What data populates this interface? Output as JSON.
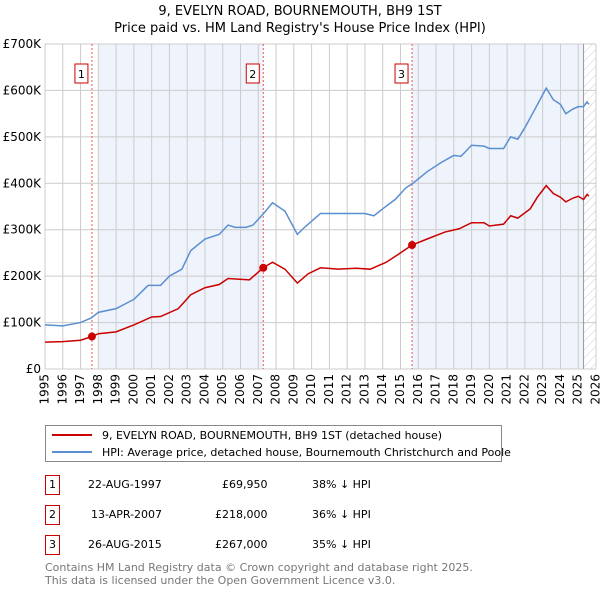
{
  "title": "9, EVELYN ROAD, BOURNEMOUTH, BH9 1ST",
  "subtitle": "Price paid vs. HM Land Registry's House Price Index (HPI)",
  "chart_data": {
    "type": "line",
    "title": "9, EVELYN ROAD, BOURNEMOUTH, BH9 1ST",
    "subtitle": "Price paid vs. HM Land Registry's House Price Index (HPI)",
    "xlim": [
      1995,
      2026
    ],
    "ylim": [
      0,
      700000
    ],
    "x_ticks": [
      "1995",
      "1996",
      "1997",
      "1998",
      "1999",
      "2000",
      "2001",
      "2002",
      "2003",
      "2004",
      "2005",
      "2006",
      "2007",
      "2008",
      "2009",
      "2010",
      "2011",
      "2012",
      "2013",
      "2014",
      "2015",
      "2016",
      "2017",
      "2018",
      "2019",
      "2020",
      "2021",
      "2022",
      "2023",
      "2024",
      "2025",
      "2026"
    ],
    "y_ticks": [
      {
        "v": 0,
        "l": "£0"
      },
      {
        "v": 100000,
        "l": "£100K"
      },
      {
        "v": 200000,
        "l": "£200K"
      },
      {
        "v": 300000,
        "l": "£300K"
      },
      {
        "v": 400000,
        "l": "£400K"
      },
      {
        "v": 500000,
        "l": "£500K"
      },
      {
        "v": 600000,
        "l": "£600K"
      },
      {
        "v": 700000,
        "l": "£700K"
      }
    ],
    "grid": true,
    "series": [
      {
        "name": "9, EVELYN ROAD, BOURNEMOUTH, BH9 1ST (detached house)",
        "color": "#cc0000",
        "x": [
          1995,
          1996,
          1997,
          1997.64,
          1998,
          1999,
          2000,
          2001,
          2001.5,
          2002.5,
          2003.2,
          2004,
          2004.8,
          2005.3,
          2006.5,
          2007.28,
          2007.8,
          2008.5,
          2009.2,
          2009.8,
          2010.5,
          2011.5,
          2012.5,
          2013.3,
          2014.2,
          2015,
          2015.65,
          2016.5,
          2017.5,
          2018.3,
          2019,
          2019.7,
          2020,
          2020.8,
          2021.2,
          2021.6,
          2022.3,
          2022.7,
          2023.2,
          2023.6,
          2024,
          2024.3,
          2024.7,
          2025,
          2025.3,
          2025.5,
          2025.6
        ],
        "y": [
          58000,
          59000,
          62000,
          69950,
          76000,
          80000,
          95000,
          112000,
          113000,
          130000,
          160000,
          175000,
          182000,
          195000,
          192000,
          218000,
          230000,
          215000,
          185000,
          205000,
          218000,
          215000,
          217000,
          215000,
          230000,
          250000,
          267000,
          280000,
          295000,
          302000,
          315000,
          315000,
          308000,
          312000,
          330000,
          325000,
          345000,
          370000,
          395000,
          378000,
          370000,
          360000,
          368000,
          372000,
          365000,
          376000,
          372000
        ]
      },
      {
        "name": "HPI: Average price, detached house, Bournemouth Christchurch and Poole",
        "color": "#5b8fd0",
        "x": [
          1995,
          1996,
          1997,
          1997.6,
          1998,
          1999,
          2000,
          2000.8,
          2001.5,
          2002,
          2002.7,
          2003.2,
          2004,
          2004.8,
          2005.3,
          2005.7,
          2006.3,
          2006.7,
          2007.3,
          2007.8,
          2008.5,
          2009.2,
          2009.6,
          2010.5,
          2011,
          2012,
          2013,
          2013.5,
          2014,
          2014.7,
          2015.3,
          2015.7,
          2016.5,
          2017.3,
          2018,
          2018.4,
          2019,
          2019.7,
          2020,
          2020.8,
          2021.2,
          2021.6,
          2022,
          2022.5,
          2023.2,
          2023.6,
          2024,
          2024.3,
          2024.7,
          2025,
          2025.3,
          2025.5,
          2025.6
        ],
        "y": [
          95000,
          93000,
          100000,
          110000,
          122000,
          130000,
          150000,
          180000,
          180000,
          200000,
          215000,
          255000,
          280000,
          290000,
          310000,
          305000,
          305000,
          310000,
          335000,
          358000,
          340000,
          290000,
          305000,
          335000,
          335000,
          335000,
          335000,
          330000,
          345000,
          365000,
          390000,
          400000,
          425000,
          445000,
          460000,
          458000,
          482000,
          480000,
          475000,
          475000,
          500000,
          495000,
          520000,
          555000,
          605000,
          580000,
          570000,
          550000,
          560000,
          565000,
          565000,
          575000,
          570000
        ]
      }
    ],
    "sales": [
      {
        "n": "1",
        "x": 1997.64,
        "y": 69950
      },
      {
        "n": "2",
        "x": 2007.28,
        "y": 218000
      },
      {
        "n": "3",
        "x": 2015.65,
        "y": 267000
      }
    ],
    "legend_position": "below"
  },
  "legend": [
    "9, EVELYN ROAD, BOURNEMOUTH, BH9 1ST (detached house)",
    "HPI: Average price, detached house, Bournemouth Christchurch and Poole"
  ],
  "transactions": [
    {
      "n": "1",
      "date": "22-AUG-1997",
      "price": "£69,950",
      "hpi": "38% ↓ HPI"
    },
    {
      "n": "2",
      "date": "13-APR-2007",
      "price": "£218,000",
      "hpi": "36% ↓ HPI"
    },
    {
      "n": "3",
      "date": "26-AUG-2015",
      "price": "£267,000",
      "hpi": "35% ↓ HPI"
    }
  ],
  "footer": [
    "Contains HM Land Registry data © Crown copyright and database right 2025.",
    "This data is licensed under the Open Government Licence v3.0."
  ]
}
